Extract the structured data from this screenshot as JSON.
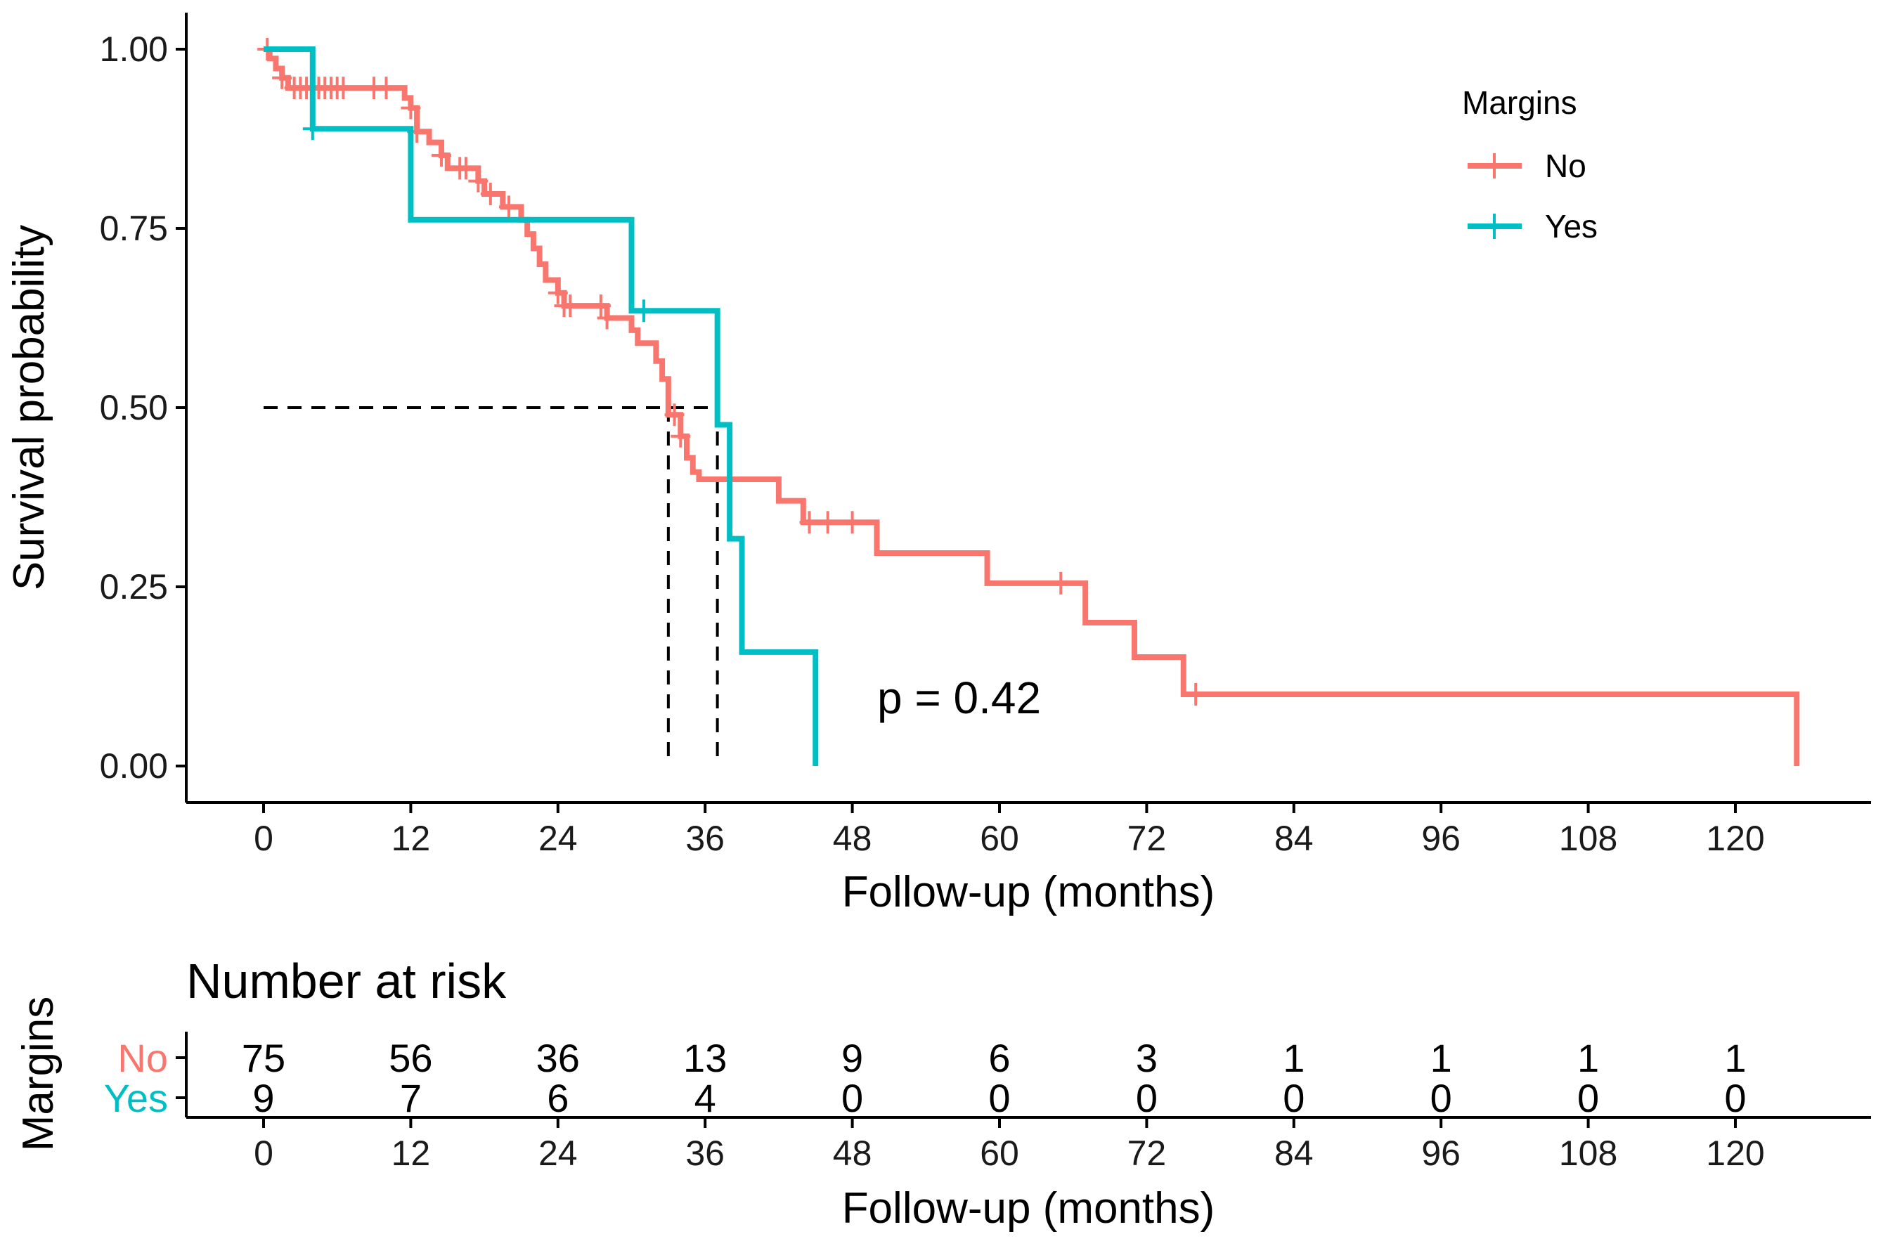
{
  "chart_data": {
    "type": "line",
    "subtype": "kaplan-meier",
    "xlabel": "Follow-up (months)",
    "ylabel": "Survival probability",
    "xlim": [
      0,
      129
    ],
    "ylim": [
      0,
      1.04
    ],
    "x_ticks": [
      0,
      12,
      24,
      36,
      48,
      60,
      72,
      84,
      96,
      108,
      120
    ],
    "x_tick_labels": [
      "0",
      "12",
      "24",
      "36",
      "48",
      "60",
      "72",
      "84",
      "96",
      "108",
      "120"
    ],
    "y_ticks": [
      0,
      0.25,
      0.5,
      0.75,
      1.0
    ],
    "y_tick_labels": [
      "0.00",
      "0.25",
      "0.50",
      "0.75",
      "1.00"
    ],
    "grid": false,
    "legend": {
      "title": "Margins",
      "placement": "top-right",
      "entries": [
        "No",
        "Yes"
      ]
    },
    "annotation": "p = 0.42",
    "median_line": {
      "y": 0.5,
      "x_start": 0,
      "medians": [
        33,
        37
      ]
    },
    "series": [
      {
        "name": "No",
        "color": "#F8766D",
        "steps": [
          [
            0,
            1.0
          ],
          [
            0.5,
            0.987
          ],
          [
            1,
            0.973
          ],
          [
            1.5,
            0.96
          ],
          [
            2,
            0.946
          ],
          [
            11.5,
            0.932
          ],
          [
            12,
            0.918
          ],
          [
            12.5,
            0.885
          ],
          [
            13.5,
            0.87
          ],
          [
            14.5,
            0.852
          ],
          [
            15,
            0.834
          ],
          [
            17.5,
            0.816
          ],
          [
            18,
            0.798
          ],
          [
            19.5,
            0.78
          ],
          [
            21,
            0.762
          ],
          [
            21.5,
            0.742
          ],
          [
            22,
            0.722
          ],
          [
            22.5,
            0.7
          ],
          [
            23,
            0.678
          ],
          [
            24,
            0.66
          ],
          [
            24.5,
            0.642
          ],
          [
            28,
            0.625
          ],
          [
            30,
            0.608
          ],
          [
            30.5,
            0.59
          ],
          [
            32,
            0.565
          ],
          [
            32.5,
            0.54
          ],
          [
            33,
            0.49
          ],
          [
            34,
            0.46
          ],
          [
            34.5,
            0.43
          ],
          [
            35,
            0.41
          ],
          [
            35.5,
            0.4
          ],
          [
            42,
            0.37
          ],
          [
            44,
            0.34
          ],
          [
            50,
            0.297
          ],
          [
            59,
            0.255
          ],
          [
            67,
            0.2
          ],
          [
            71,
            0.152
          ],
          [
            75,
            0.1
          ],
          [
            125,
            0.1
          ],
          [
            125,
            0.0
          ]
        ],
        "censor_times": [
          0.3,
          1.5,
          2.5,
          3,
          3.5,
          4,
          4.5,
          5,
          5.5,
          6,
          6.5,
          9,
          10,
          12,
          12.5,
          14.5,
          16,
          16.5,
          17.5,
          18.5,
          20,
          24,
          24.5,
          25,
          27.5,
          28,
          33.5,
          34,
          44.5,
          46,
          48,
          65,
          76
        ]
      },
      {
        "name": "Yes",
        "color": "#00BFC4",
        "steps": [
          [
            0,
            1.0
          ],
          [
            4,
            0.889
          ],
          [
            12,
            0.762
          ],
          [
            30,
            0.635
          ],
          [
            37,
            0.476
          ],
          [
            38,
            0.317
          ],
          [
            39,
            0.159
          ],
          [
            45,
            0.159
          ],
          [
            45,
            0.0
          ]
        ],
        "censor_times": [
          4,
          31
        ]
      }
    ],
    "risk_table": {
      "title": "Number at risk",
      "ylabel": "Margins",
      "xlabel": "Follow-up (months)",
      "times": [
        0,
        12,
        24,
        36,
        48,
        60,
        72,
        84,
        96,
        108,
        120
      ],
      "time_labels": [
        "0",
        "12",
        "24",
        "36",
        "48",
        "60",
        "72",
        "84",
        "96",
        "108",
        "120"
      ],
      "rows": [
        {
          "name": "No",
          "color": "#F8766D",
          "counts": [
            "75",
            "56",
            "36",
            "13",
            "9",
            "6",
            "3",
            "1",
            "1",
            "1",
            "1"
          ]
        },
        {
          "name": "Yes",
          "color": "#00BFC4",
          "counts": [
            "9",
            "7",
            "6",
            "4",
            "0",
            "0",
            "0",
            "0",
            "0",
            "0",
            "0"
          ]
        }
      ]
    }
  }
}
